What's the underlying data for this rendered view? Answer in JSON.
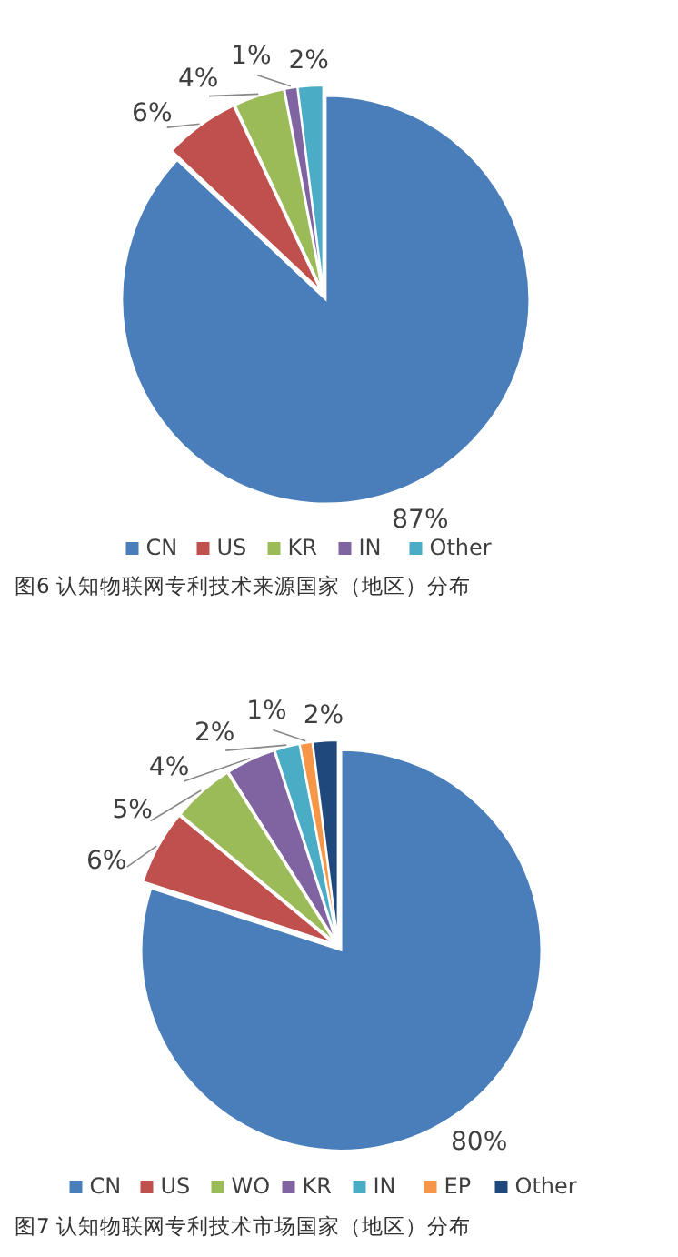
{
  "chart_data": [
    {
      "type": "pie",
      "title": "图6 认知物联网专利技术来源国家（地区）分布",
      "categories": [
        "CN",
        "US",
        "KR",
        "IN",
        "Other"
      ],
      "values": [
        87,
        6,
        4,
        1,
        2
      ],
      "value_labels": [
        "87%",
        "6%",
        "4%",
        "1%",
        "2%"
      ],
      "colors": [
        "#4a7ebb",
        "#c0504d",
        "#9bbb59",
        "#8064a2",
        "#4bacc6"
      ],
      "legend": "bottom"
    },
    {
      "type": "pie",
      "title": "图7 认知物联网专利技术市场国家（地区）分布",
      "categories": [
        "CN",
        "US",
        "WO",
        "KR",
        "IN",
        "EP",
        "Other"
      ],
      "values": [
        80,
        6,
        5,
        4,
        2,
        1,
        2
      ],
      "value_labels": [
        "80%",
        "6%",
        "5%",
        "4%",
        "2%",
        "1%",
        "2%"
      ],
      "colors": [
        "#4a7ebb",
        "#c0504d",
        "#9bbb59",
        "#8064a2",
        "#4bacc6",
        "#f79646",
        "#1f497d"
      ],
      "legend": "bottom"
    }
  ]
}
